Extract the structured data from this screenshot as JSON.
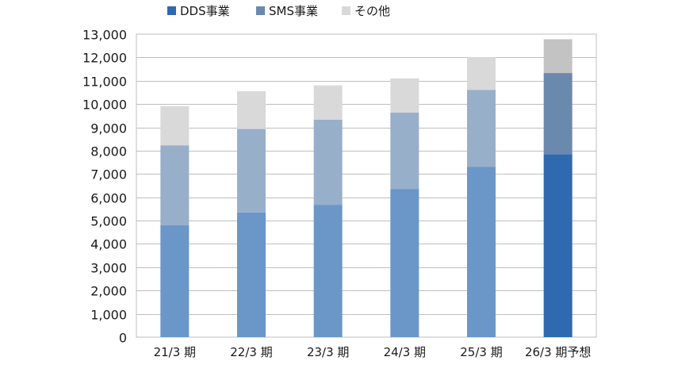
{
  "chart_data": {
    "type": "bar",
    "stacked": true,
    "categories": [
      "21/3 期",
      "22/3 期",
      "23/3 期",
      "24/3 期",
      "25/3 期",
      "26/3 期予想"
    ],
    "series": [
      {
        "name": "DDS事業",
        "values": [
          4800,
          5350,
          5680,
          6360,
          7300,
          7850
        ],
        "color": "#6b96c8",
        "highlight_color": "#2f69b0"
      },
      {
        "name": "SMS事業",
        "values": [
          3430,
          3580,
          3650,
          3270,
          3310,
          3480
        ],
        "color": "#98afca",
        "highlight_color": "#6b89ad"
      },
      {
        "name": "その他",
        "values": [
          1680,
          1620,
          1470,
          1470,
          1400,
          1450
        ],
        "color": "#d9d9d9",
        "highlight_color": "#c3c3c3"
      }
    ],
    "highlight_category_index": 5,
    "ylim": [
      0,
      13000
    ],
    "yticks": [
      "0",
      "1,000",
      "2,000",
      "3,000",
      "4,000",
      "5,000",
      "6,000",
      "7,000",
      "8,000",
      "9,000",
      "10,000",
      "11,000",
      "12,000",
      "13,000"
    ],
    "ytick_values": [
      0,
      1000,
      2000,
      3000,
      4000,
      5000,
      6000,
      7000,
      8000,
      9000,
      10000,
      11000,
      12000,
      13000
    ],
    "grid": true,
    "legend_position": "top",
    "legend": [
      {
        "label": "DDS事業",
        "color": "#2f69b0"
      },
      {
        "label": "SMS事業",
        "color": "#6b89ad"
      },
      {
        "label": "その他",
        "color": "#d9d9d9"
      }
    ],
    "title": "",
    "xlabel": "",
    "ylabel": ""
  }
}
